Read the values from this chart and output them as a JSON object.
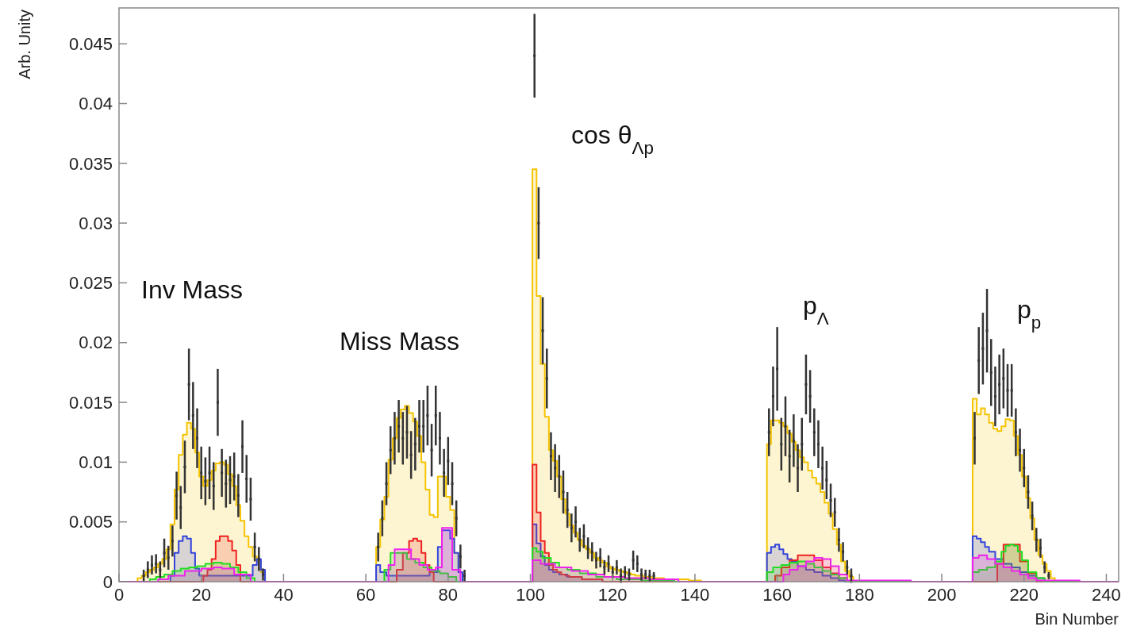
{
  "chart_data": {
    "type": "area",
    "xlabel": "Bin Number",
    "ylabel": "Arb. Unity",
    "xlim": [
      0,
      243
    ],
    "ylim": [
      0,
      0.048
    ],
    "xticks": [
      0,
      20,
      40,
      60,
      80,
      100,
      120,
      140,
      160,
      180,
      200,
      220,
      240
    ],
    "yticks": [
      0,
      0.005,
      0.01,
      0.015,
      0.02,
      0.025,
      0.03,
      0.035,
      0.04,
      0.045
    ],
    "annotations": [
      "Inv Mass",
      "Miss Mass",
      "cos θ$_{Λp}$",
      "p$_{Λ}$",
      "p$_{p}$"
    ],
    "series": [
      {
        "color": "#f5c400",
        "x": [
          0,
          4,
          5,
          6,
          7,
          8,
          9,
          10,
          11,
          12,
          13,
          14,
          15,
          16,
          17,
          18,
          19,
          20,
          21,
          22,
          23,
          24,
          25,
          26,
          27,
          28,
          29,
          30,
          31,
          32,
          33,
          34,
          35,
          36,
          62,
          63,
          64,
          65,
          66,
          67,
          68,
          69,
          70,
          71,
          72,
          73,
          74,
          75,
          76,
          77,
          78,
          79,
          80,
          81,
          82,
          83,
          84,
          100,
          101,
          102,
          103,
          104,
          105,
          106,
          107,
          108,
          109,
          110,
          111,
          112,
          113,
          114,
          115,
          116,
          117,
          118,
          119,
          120,
          121,
          122,
          123,
          124,
          125,
          126,
          127,
          128,
          129,
          130,
          131,
          132,
          133,
          134,
          135,
          136,
          137,
          138,
          139,
          140,
          141,
          142,
          157,
          158,
          159,
          160,
          161,
          162,
          163,
          164,
          165,
          166,
          167,
          168,
          169,
          170,
          171,
          172,
          173,
          174,
          175,
          176,
          177,
          178,
          179,
          207,
          208,
          209,
          210,
          211,
          212,
          213,
          214,
          215,
          216,
          217,
          218,
          219,
          220,
          221,
          222,
          223,
          224,
          225,
          226,
          227,
          228,
          243
        ],
        "values": [
          0,
          0,
          0.0003,
          0.0005,
          0.0008,
          0.001,
          0.0012,
          0.0015,
          0.0019,
          0.0027,
          0.0048,
          0.0077,
          0.0106,
          0.0123,
          0.0133,
          0.0128,
          0.0108,
          0.0088,
          0.008,
          0.0085,
          0.0093,
          0.0099,
          0.01,
          0.0098,
          0.009,
          0.008,
          0.0064,
          0.0051,
          0.0038,
          0.0029,
          0.0021,
          0.0017,
          0.0008,
          0,
          0,
          0.0029,
          0.0052,
          0.0071,
          0.0102,
          0.012,
          0.0137,
          0.0144,
          0.0147,
          0.0141,
          0.0134,
          0.0122,
          0.01,
          0.0077,
          0.0056,
          0.0054,
          0.0088,
          0.0088,
          0.0071,
          0.006,
          0.0024,
          0.0008,
          0,
          0,
          0.0345,
          0.0239,
          0.0182,
          0.0138,
          0.011,
          0.0101,
          0.0088,
          0.0069,
          0.0057,
          0.0047,
          0.0041,
          0.0035,
          0.003,
          0.0027,
          0.0024,
          0.002,
          0.0018,
          0.0016,
          0.0013,
          0.0011,
          0.001,
          0.0009,
          0.0008,
          0.0007,
          0.0006,
          0.0005,
          0.0005,
          0.0004,
          0.0004,
          0.0003,
          0.0003,
          0.0003,
          0.0002,
          0.0002,
          0.0002,
          0.0002,
          0.0002,
          0.0002,
          0.0001,
          0.0001,
          0.0001,
          0,
          0,
          0.0115,
          0.0135,
          0.0135,
          0.0133,
          0.013,
          0.0124,
          0.0117,
          0.011,
          0.0104,
          0.01,
          0.0093,
          0.0087,
          0.0082,
          0.0075,
          0.0066,
          0.0057,
          0.0044,
          0.0031,
          0.0017,
          0.0009,
          0.0004,
          0,
          0,
          0.0153,
          0.014,
          0.0145,
          0.014,
          0.0133,
          0.0128,
          0.0126,
          0.013,
          0.0136,
          0.0135,
          0.0122,
          0.0106,
          0.0088,
          0.007,
          0.0053,
          0.0035,
          0.0022,
          0.0015,
          0.0009,
          0.0003,
          0,
          0
        ]
      },
      {
        "color": "#3344dd",
        "x": [
          0,
          12,
          13,
          14,
          15,
          16,
          17,
          18,
          19,
          20,
          32,
          33,
          34,
          35,
          36,
          62,
          63,
          64,
          66,
          70,
          74,
          77,
          78,
          79,
          80,
          81,
          82,
          83,
          84,
          100,
          101,
          102,
          103,
          104,
          105,
          106,
          108,
          110,
          115,
          120,
          157,
          158,
          159,
          160,
          161,
          162,
          163,
          164,
          166,
          168,
          170,
          172,
          174,
          176,
          177,
          207,
          208,
          209,
          210,
          211,
          212,
          214,
          216,
          218,
          220,
          222,
          224,
          226,
          243
        ],
        "values": [
          0,
          0,
          0.0005,
          0.0024,
          0.0034,
          0.0038,
          0.0036,
          0.0024,
          0.0011,
          0.0005,
          0.0005,
          0.0014,
          0.0019,
          0.001,
          0,
          0,
          0.0014,
          0.0008,
          0.0005,
          0.0005,
          0.0005,
          0.0008,
          0.0029,
          0.0043,
          0.0043,
          0.0036,
          0.0024,
          0.0008,
          0,
          0,
          0.0048,
          0.0032,
          0.0021,
          0.0014,
          0.001,
          0.0008,
          0.0006,
          0.0004,
          0.0002,
          0,
          0,
          0.0024,
          0.0029,
          0.0031,
          0.0027,
          0.0023,
          0.0019,
          0.0017,
          0.0013,
          0.001,
          0.0008,
          0.0005,
          0.0003,
          0.0001,
          0,
          0,
          0.0038,
          0.0036,
          0.0033,
          0.0029,
          0.0025,
          0.0019,
          0.0015,
          0.0012,
          0.0008,
          0.0005,
          0.0003,
          0,
          0
        ]
      },
      {
        "color": "#ee2222",
        "x": [
          0,
          20,
          21,
          22,
          23,
          24,
          25,
          26,
          27,
          28,
          29,
          30,
          67,
          68,
          70,
          71,
          72,
          73,
          74,
          75,
          76,
          77,
          100,
          101,
          102,
          103,
          104,
          105,
          106,
          107,
          108,
          109,
          110,
          115,
          120,
          159,
          160,
          162,
          164,
          166,
          168,
          170,
          172,
          174,
          176,
          178,
          213,
          214,
          216,
          218,
          220,
          222,
          224,
          243
        ],
        "values": [
          0,
          0,
          0.0005,
          0.001,
          0.0019,
          0.0034,
          0.0038,
          0.0038,
          0.0034,
          0.0026,
          0.0014,
          0,
          0,
          0.001,
          0.0024,
          0.0034,
          0.0036,
          0.0034,
          0.0024,
          0.0014,
          0.0008,
          0,
          0,
          0.0098,
          0.0058,
          0.0034,
          0.0024,
          0.0014,
          0.001,
          0.0008,
          0.0006,
          0.0005,
          0.0004,
          0.0002,
          0,
          0,
          0.0005,
          0.0012,
          0.0018,
          0.0022,
          0.0022,
          0.0018,
          0.0012,
          0.0007,
          0.0003,
          0,
          0,
          0.0015,
          0.0031,
          0.0031,
          0.0017,
          0.0007,
          0,
          0
        ]
      },
      {
        "color": "#22dd22",
        "x": [
          0,
          7,
          8,
          10,
          12,
          14,
          16,
          18,
          20,
          22,
          24,
          26,
          28,
          30,
          32,
          34,
          64,
          65,
          67,
          69,
          71,
          73,
          75,
          77,
          79,
          81,
          83,
          100,
          101,
          102,
          104,
          106,
          108,
          110,
          114,
          118,
          124,
          130,
          140,
          157,
          158,
          160,
          162,
          164,
          166,
          168,
          170,
          172,
          174,
          176,
          178,
          207,
          208,
          210,
          212,
          214,
          215,
          216,
          217,
          218,
          219,
          220,
          222,
          224,
          226,
          243
        ],
        "values": [
          0,
          0,
          0.0002,
          0.0004,
          0.0006,
          0.0009,
          0.0011,
          0.0012,
          0.0013,
          0.0015,
          0.0016,
          0.0015,
          0.0012,
          0.0008,
          0.0003,
          0,
          0,
          0.001,
          0.0024,
          0.0024,
          0.0019,
          0.0016,
          0.0012,
          0.0009,
          0.0007,
          0.0004,
          0,
          0,
          0.0028,
          0.0025,
          0.002,
          0.0016,
          0.0012,
          0.001,
          0.0007,
          0.0004,
          0.0002,
          0.0001,
          0,
          0,
          0.0008,
          0.0012,
          0.0014,
          0.0016,
          0.0017,
          0.0015,
          0.0012,
          0.0009,
          0.0006,
          0.0003,
          0,
          0,
          0.0008,
          0.001,
          0.0012,
          0.0017,
          0.0025,
          0.003,
          0.0031,
          0.003,
          0.0025,
          0.0018,
          0.0008,
          0.0003,
          0,
          0
        ]
      },
      {
        "color": "#ee22ee",
        "x": [
          0,
          9,
          10,
          14,
          18,
          22,
          24,
          26,
          30,
          34,
          65,
          66,
          68,
          70,
          72,
          74,
          76,
          78,
          79,
          80,
          82,
          84,
          100,
          101,
          104,
          108,
          112,
          116,
          120,
          126,
          132,
          140,
          161,
          162,
          164,
          166,
          168,
          170,
          172,
          174,
          176,
          178,
          207,
          208,
          210,
          212,
          214,
          216,
          218,
          220,
          222,
          224,
          243
        ],
        "values": [
          0,
          0,
          0.0002,
          0.0005,
          0.0009,
          0.0011,
          0.0012,
          0.0011,
          0.0006,
          0,
          0,
          0.0014,
          0.0027,
          0.0027,
          0.0019,
          0.0014,
          0.001,
          0.0012,
          0.0045,
          0.0045,
          0.001,
          0,
          0,
          0.0018,
          0.0015,
          0.0012,
          0.0009,
          0.0006,
          0.0004,
          0.0003,
          0.0002,
          0,
          0,
          0.0006,
          0.001,
          0.0013,
          0.0017,
          0.002,
          0.0019,
          0.0013,
          0.0006,
          0.0001,
          0,
          0.002,
          0.0022,
          0.0019,
          0.0015,
          0.0012,
          0.0009,
          0.0006,
          0.0003,
          0.0001,
          0
        ]
      },
      {
        "type": "scatter",
        "marker": "square",
        "color": "#333333",
        "x": [
          6,
          7,
          8,
          9,
          10,
          11,
          12,
          13,
          14,
          15,
          16,
          17,
          18,
          19,
          20,
          21,
          22,
          23,
          24,
          25,
          26,
          27,
          28,
          29,
          30,
          31,
          32,
          33,
          34,
          35,
          50,
          63,
          64,
          65,
          66,
          67,
          68,
          69,
          70,
          71,
          72,
          73,
          74,
          75,
          76,
          77,
          78,
          79,
          80,
          81,
          82,
          83,
          84,
          92,
          101,
          102,
          103,
          104,
          105,
          106,
          107,
          108,
          109,
          110,
          111,
          112,
          113,
          114,
          115,
          116,
          117,
          118,
          119,
          120,
          121,
          122,
          123,
          124,
          125,
          126,
          127,
          128,
          129,
          130,
          145,
          158,
          159,
          160,
          161,
          162,
          163,
          164,
          165,
          166,
          167,
          168,
          169,
          170,
          171,
          172,
          173,
          174,
          175,
          176,
          177,
          178,
          195,
          208,
          209,
          210,
          211,
          212,
          213,
          214,
          215,
          216,
          217,
          218,
          219,
          220,
          221,
          222,
          223,
          224,
          225,
          226
        ],
        "values": [
          0.0005,
          0.001,
          0.0014,
          0.0015,
          0.001,
          0.0024,
          0.002,
          0.0034,
          0.0072,
          0.0062,
          0.0096,
          0.0165,
          0.0139,
          0.012,
          0.0091,
          0.0084,
          0.0091,
          0.008,
          0.015,
          0.0091,
          0.0082,
          0.0085,
          0.0088,
          0.0072,
          0.0113,
          0.0086,
          0.0069,
          0.0029,
          0.0019,
          0.0006,
          null,
          0.0029,
          0.0053,
          0.0082,
          0.011,
          0.012,
          0.013,
          0.012,
          0.0125,
          0.0106,
          0.0115,
          0.013,
          0.013,
          0.0139,
          0.011,
          0.0139,
          0.012,
          0.0091,
          0.0101,
          0.0082,
          0.0053,
          0.0021,
          0.0005,
          null,
          0.044,
          0.03,
          0.021,
          0.017,
          0.0105,
          0.0095,
          0.0088,
          0.0075,
          0.006,
          0.0045,
          0.005,
          0.0035,
          0.0038,
          0.0028,
          0.0025,
          0.0018,
          0.002,
          0.0012,
          0.0015,
          0.0008,
          0.0012,
          0.0005,
          0.0008,
          0.0006,
          0.0018,
          0.0015,
          0.0006,
          0.0006,
          0.0005,
          0.0005,
          null,
          0.0125,
          0.0155,
          0.0178,
          0.0115,
          0.013,
          0.0105,
          0.0118,
          0.0095,
          0.0115,
          0.0165,
          0.0155,
          0.0125,
          0.0115,
          0.0095,
          0.0085,
          0.0068,
          0.0058,
          0.0035,
          0.0025,
          0.0012,
          0.0005,
          null,
          0.012,
          0.0185,
          0.0195,
          0.021,
          0.0175,
          0.0155,
          0.0165,
          0.017,
          0.016,
          0.016,
          0.0125,
          0.011,
          0.0095,
          0.0075,
          0.0055,
          0.0035,
          0.0028,
          0.0012,
          0.0005
        ],
        "errors": [
          0.0005,
          0.0007,
          0.0008,
          0.0008,
          0.0007,
          0.0012,
          0.001,
          0.0013,
          0.002,
          0.0018,
          0.0022,
          0.003,
          0.0028,
          0.0025,
          0.0022,
          0.002,
          0.0022,
          0.002,
          0.0028,
          0.002,
          0.002,
          0.002,
          0.002,
          0.0018,
          0.0022,
          0.002,
          0.0018,
          0.0012,
          0.001,
          0.0005,
          null,
          0.0012,
          0.0015,
          0.0018,
          0.002,
          0.0022,
          0.0022,
          0.0022,
          0.0022,
          0.002,
          0.0022,
          0.0022,
          0.0022,
          0.0025,
          0.0022,
          0.0025,
          0.0022,
          0.002,
          0.002,
          0.0018,
          0.0015,
          0.001,
          0.0005,
          null,
          0.0035,
          0.003,
          0.0028,
          0.0025,
          0.002,
          0.002,
          0.0018,
          0.0018,
          0.0015,
          0.0012,
          0.0013,
          0.001,
          0.001,
          0.0009,
          0.0008,
          0.0007,
          0.0008,
          0.0006,
          0.0007,
          0.0005,
          0.0006,
          0.0006,
          0.0005,
          0.0005,
          0.0008,
          0.0007,
          0.0005,
          0.0004,
          0.0005,
          0.0003,
          null,
          0.002,
          0.0025,
          0.0035,
          0.0022,
          0.0025,
          0.0022,
          0.0022,
          0.002,
          0.0022,
          0.0025,
          0.0022,
          0.002,
          0.002,
          0.0018,
          0.0016,
          0.0014,
          0.0012,
          0.001,
          0.0008,
          0.0006,
          0.0006,
          null,
          0.0022,
          0.0028,
          0.003,
          0.0035,
          0.0028,
          0.0025,
          0.0025,
          0.0025,
          0.0022,
          0.0022,
          0.002,
          0.0018,
          0.0016,
          0.0014,
          0.0012,
          0.001,
          0.0008,
          0.0005,
          0.0003
        ]
      }
    ]
  }
}
